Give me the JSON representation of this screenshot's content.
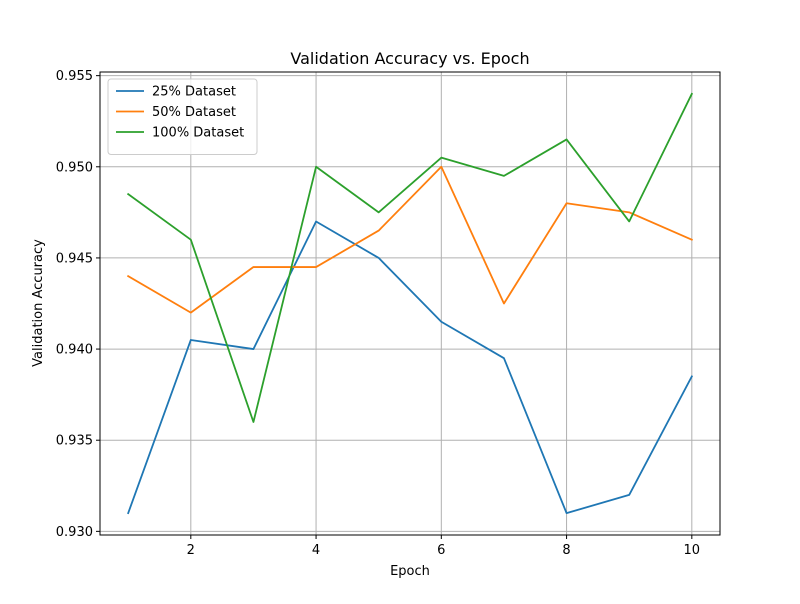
{
  "chart_data": {
    "type": "line",
    "title": "Validation Accuracy vs. Epoch",
    "xlabel": "Epoch",
    "ylabel": "Validation Accuracy",
    "x": [
      1,
      2,
      3,
      4,
      5,
      6,
      7,
      8,
      9,
      10
    ],
    "xlim": [
      0.55,
      10.45
    ],
    "ylim": [
      0.9298,
      0.9552
    ],
    "xticks": [
      2,
      4,
      6,
      8,
      10
    ],
    "yticks": [
      0.93,
      0.935,
      0.94,
      0.945,
      0.95,
      0.955
    ],
    "ytick_labels": [
      "0.930",
      "0.935",
      "0.940",
      "0.945",
      "0.950",
      "0.955"
    ],
    "grid": true,
    "legend_position": "top-left",
    "series": [
      {
        "name": "25% Dataset",
        "color": "#1f77b4",
        "values": [
          0.931,
          0.9405,
          0.94,
          0.947,
          0.945,
          0.9415,
          0.9395,
          0.931,
          0.932,
          0.9385
        ]
      },
      {
        "name": "50% Dataset",
        "color": "#ff7f0e",
        "values": [
          0.944,
          0.942,
          0.9445,
          0.9445,
          0.9465,
          0.95,
          0.9425,
          0.948,
          0.9475,
          0.946
        ]
      },
      {
        "name": "100% Dataset",
        "color": "#2ca02c",
        "values": [
          0.9485,
          0.946,
          0.936,
          0.95,
          0.9475,
          0.9505,
          0.9495,
          0.9515,
          0.947,
          0.954
        ]
      }
    ]
  }
}
